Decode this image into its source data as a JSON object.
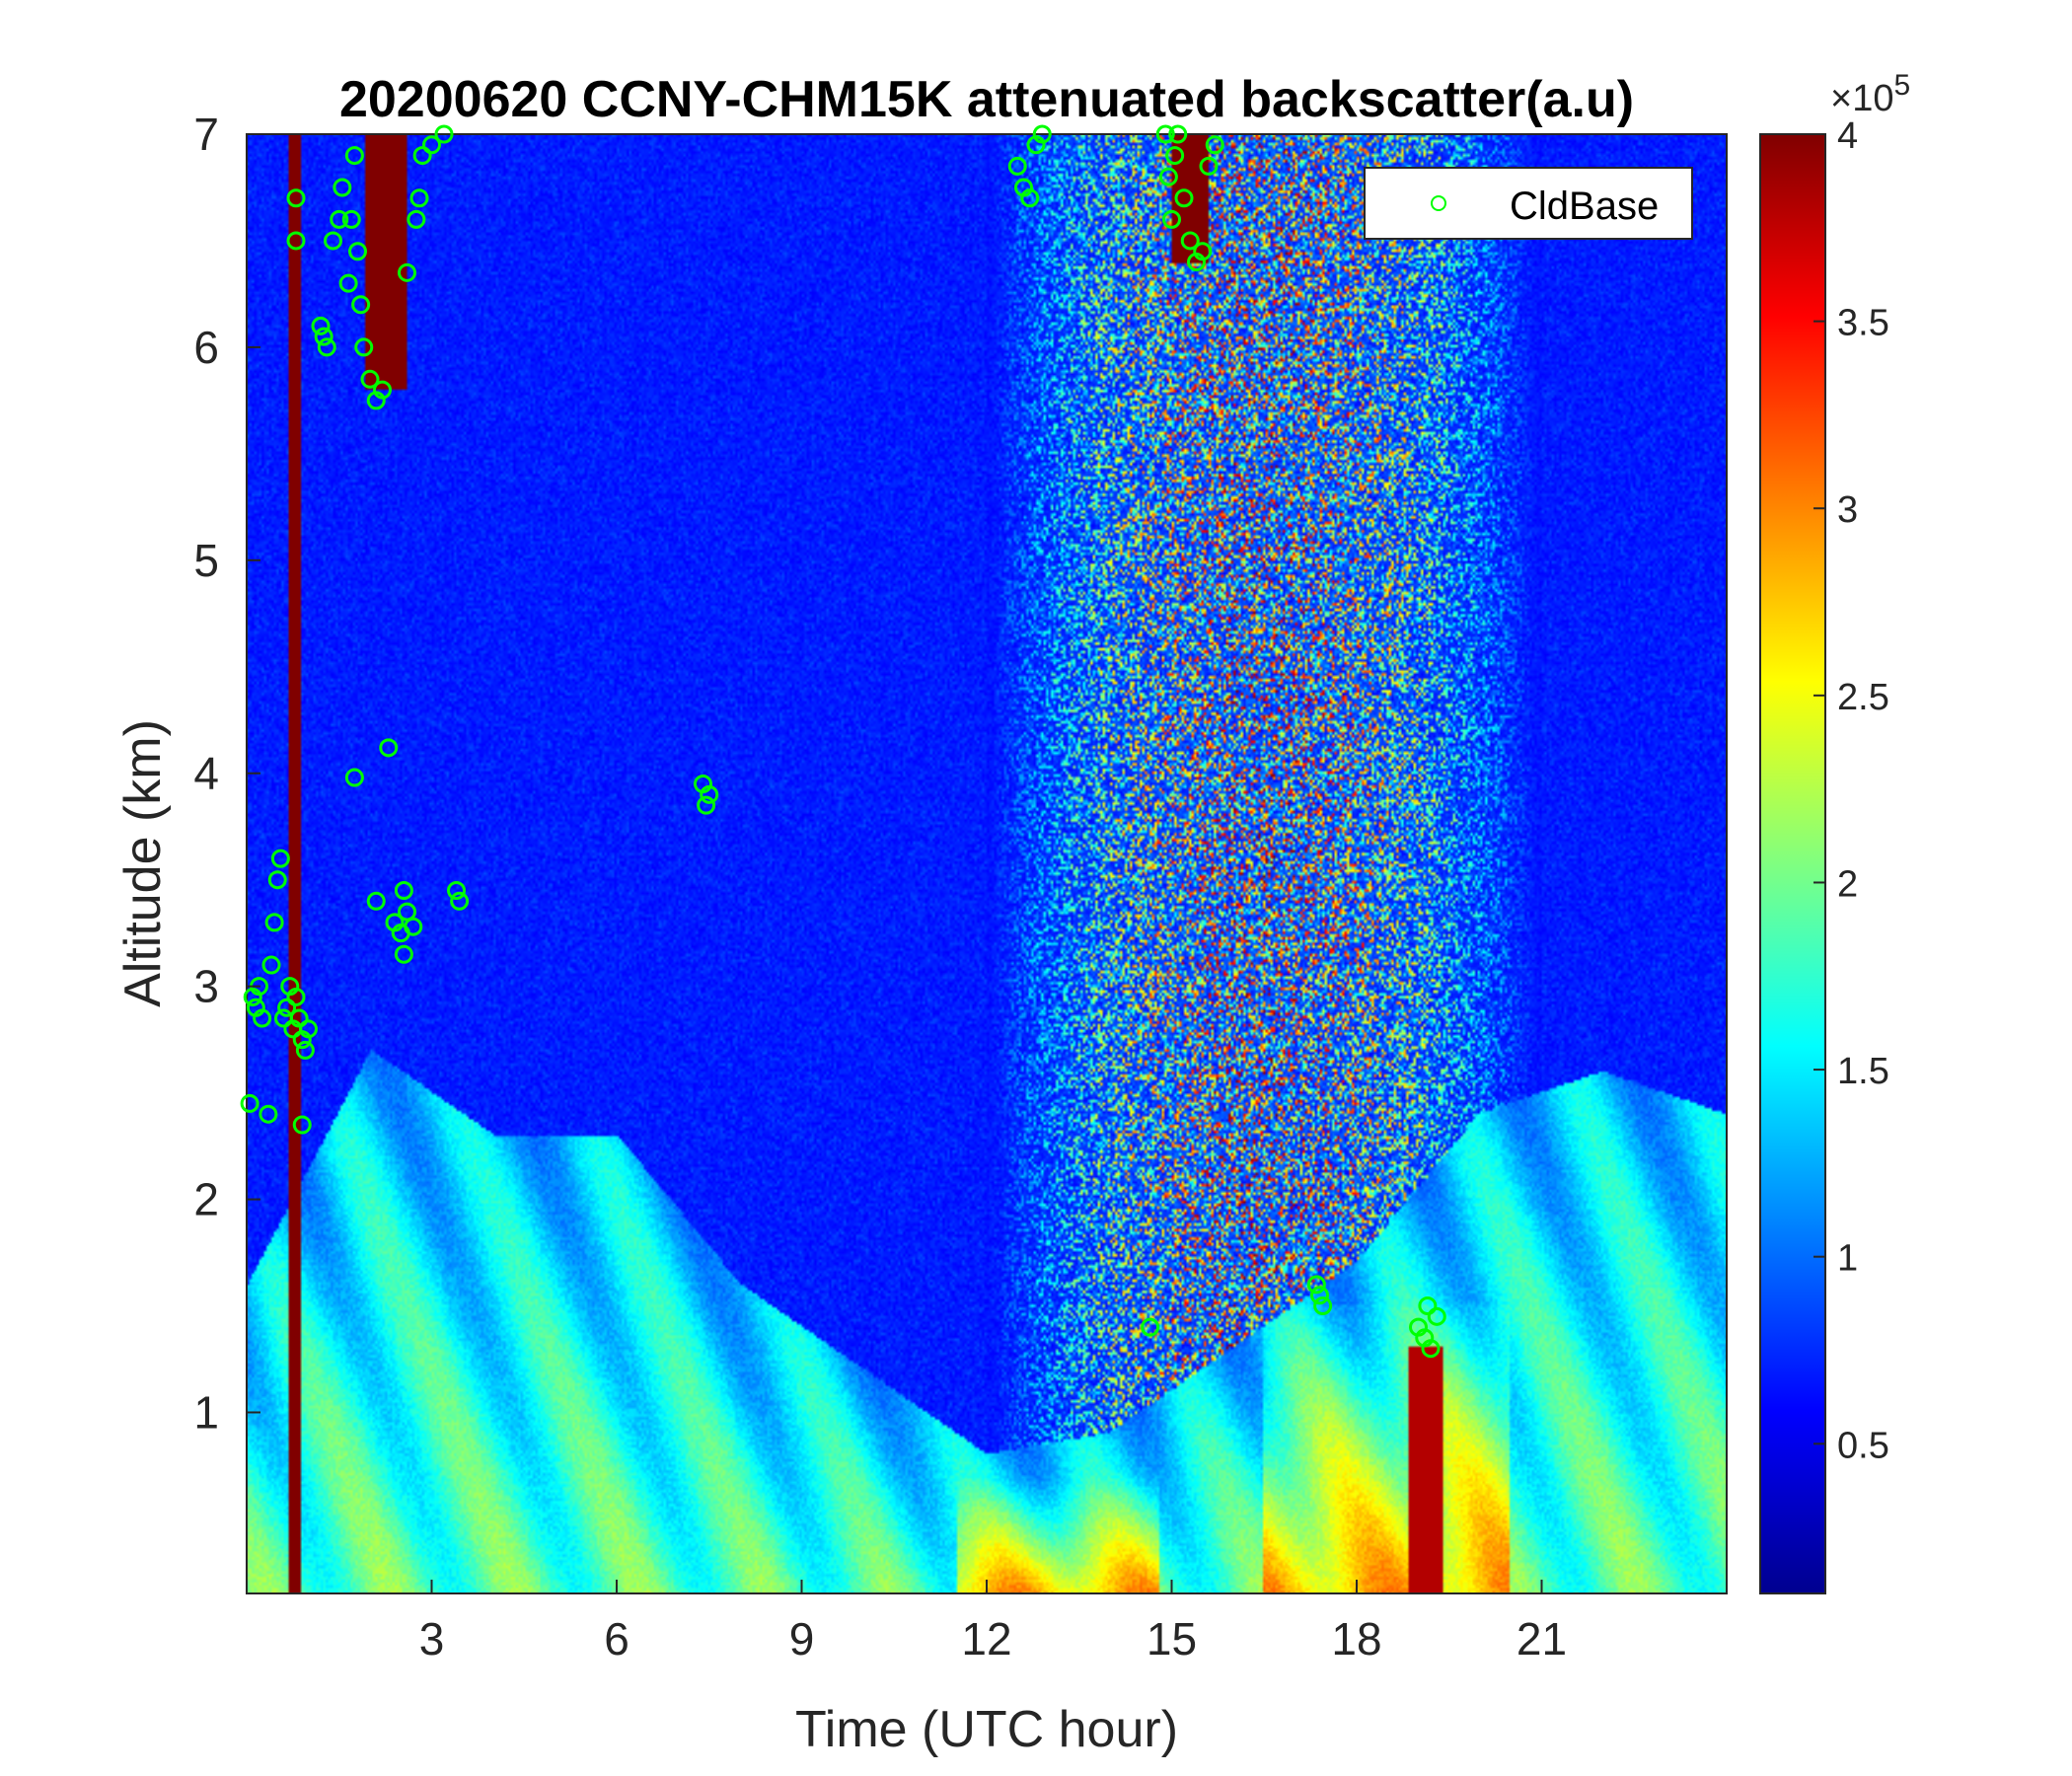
{
  "chart_data": {
    "type": "heatmap",
    "title": "20200620 CCNY-CHM15K attenuated backscatter(a.u)",
    "xlabel": "Time (UTC hour)",
    "ylabel": "Altitude (km)",
    "xlim": [
      0,
      24
    ],
    "ylim": [
      0.15,
      7
    ],
    "x_ticks": [
      "3",
      "6",
      "9",
      "12",
      "15",
      "18",
      "21"
    ],
    "y_ticks": [
      "1",
      "2",
      "3",
      "4",
      "5",
      "6",
      "7"
    ],
    "colorbar": {
      "colormap": "jet",
      "range": [
        0.1,
        4
      ],
      "ticks": [
        "0.5",
        "1",
        "1.5",
        "2",
        "2.5",
        "3",
        "3.5",
        "4"
      ],
      "exponent_base": "×10",
      "exponent_power": "5"
    },
    "legend": {
      "entries": [
        "CldBase"
      ],
      "placement": "top-right",
      "marker_color": "#00ff00"
    },
    "cloud_base_series": {
      "name": "CldBase",
      "points": [
        [
          0.1,
          2.95
        ],
        [
          0.15,
          2.9
        ],
        [
          0.2,
          3.0
        ],
        [
          0.25,
          2.85
        ],
        [
          0.05,
          2.45
        ],
        [
          0.35,
          2.4
        ],
        [
          0.4,
          3.1
        ],
        [
          0.5,
          3.5
        ],
        [
          0.55,
          3.6
        ],
        [
          0.45,
          3.3
        ],
        [
          0.6,
          2.85
        ],
        [
          0.65,
          2.9
        ],
        [
          0.7,
          3.0
        ],
        [
          0.75,
          2.8
        ],
        [
          0.8,
          2.95
        ],
        [
          0.85,
          2.85
        ],
        [
          0.9,
          2.75
        ],
        [
          0.95,
          2.7
        ],
        [
          1.0,
          2.8
        ],
        [
          0.9,
          2.35
        ],
        [
          0.8,
          6.5
        ],
        [
          0.8,
          6.7
        ],
        [
          1.2,
          6.1
        ],
        [
          1.25,
          6.05
        ],
        [
          1.3,
          6.0
        ],
        [
          1.4,
          6.5
        ],
        [
          1.5,
          6.6
        ],
        [
          1.55,
          6.75
        ],
        [
          1.65,
          6.3
        ],
        [
          1.7,
          6.6
        ],
        [
          1.75,
          6.9
        ],
        [
          1.8,
          6.45
        ],
        [
          1.85,
          6.2
        ],
        [
          1.9,
          6.0
        ],
        [
          2.0,
          5.85
        ],
        [
          2.1,
          5.75
        ],
        [
          2.2,
          5.8
        ],
        [
          1.75,
          3.98
        ],
        [
          2.3,
          4.12
        ],
        [
          2.1,
          3.4
        ],
        [
          2.4,
          3.3
        ],
        [
          2.5,
          3.25
        ],
        [
          2.55,
          3.15
        ],
        [
          2.6,
          3.35
        ],
        [
          2.7,
          3.28
        ],
        [
          2.55,
          3.45
        ],
        [
          2.6,
          6.35
        ],
        [
          2.75,
          6.6
        ],
        [
          2.8,
          6.7
        ],
        [
          2.85,
          6.9
        ],
        [
          3.0,
          6.95
        ],
        [
          3.2,
          7.0
        ],
        [
          3.4,
          3.45
        ],
        [
          3.45,
          3.4
        ],
        [
          7.4,
          3.95
        ],
        [
          7.5,
          3.9
        ],
        [
          7.45,
          3.85
        ],
        [
          12.5,
          6.85
        ],
        [
          12.6,
          6.75
        ],
        [
          12.7,
          6.7
        ],
        [
          12.8,
          6.95
        ],
        [
          12.9,
          7.0
        ],
        [
          14.65,
          1.4
        ],
        [
          14.9,
          7.0
        ],
        [
          14.95,
          6.8
        ],
        [
          15.0,
          6.6
        ],
        [
          15.05,
          6.9
        ],
        [
          15.1,
          7.0
        ],
        [
          15.2,
          6.7
        ],
        [
          15.3,
          6.5
        ],
        [
          15.4,
          6.4
        ],
        [
          15.5,
          6.45
        ],
        [
          15.6,
          6.85
        ],
        [
          15.7,
          6.95
        ],
        [
          17.35,
          1.6
        ],
        [
          17.4,
          1.55
        ],
        [
          17.45,
          1.5
        ],
        [
          19.0,
          1.4
        ],
        [
          19.1,
          1.35
        ],
        [
          19.15,
          1.5
        ],
        [
          19.2,
          1.3
        ],
        [
          19.3,
          1.45
        ]
      ]
    },
    "field_description": {
      "aerosol_layer_top_km_by_hour": [
        [
          0,
          1.6
        ],
        [
          2,
          2.7
        ],
        [
          4,
          2.3
        ],
        [
          6,
          2.3
        ],
        [
          8,
          1.6
        ],
        [
          10,
          1.2
        ],
        [
          12,
          0.8
        ],
        [
          14,
          0.9
        ],
        [
          16,
          1.3
        ],
        [
          18,
          1.7
        ],
        [
          20,
          2.4
        ],
        [
          22,
          2.6
        ],
        [
          24,
          2.4
        ]
      ],
      "high_noise_daytime_hours": [
        12,
        21
      ]
    }
  }
}
